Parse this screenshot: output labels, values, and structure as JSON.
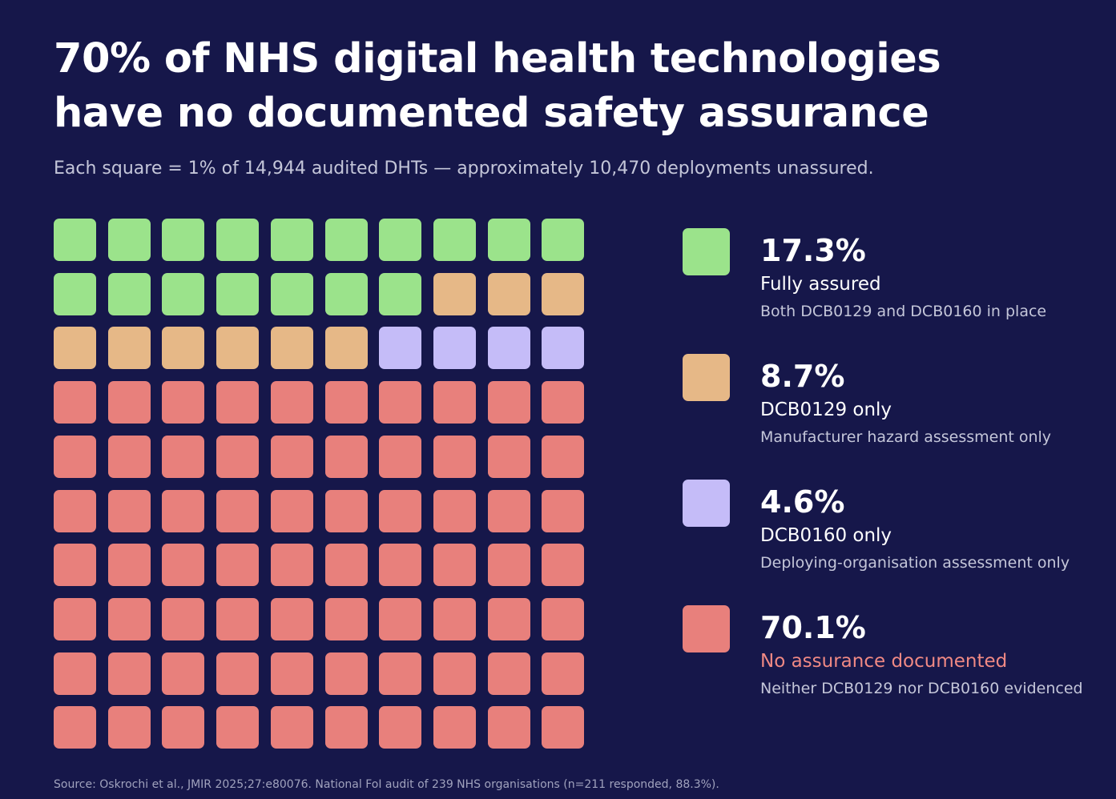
{
  "title": "70% of NHS digital health technologies have no documented safety assurance",
  "subtitle": "Each square = 1% of 14,944 audited DHTs — approximately 10,470 deployments unassured.",
  "source": "Source: Oskrochi et al., JMIR 2025;27:e80076. National FoI audit of 239 NHS organisations (n=211 responded, 88.3%).",
  "chart_data": {
    "type": "waffle",
    "grid_rows": 10,
    "grid_cols": 10,
    "unit": "Each square = 1% of 14,944 audited DHTs",
    "categories": [
      {
        "pct_label": "17.3%",
        "value": 17.3,
        "squares": 17,
        "label": "Fully assured",
        "description": "Both DCB0129 and DCB0160 in place",
        "color": "#9be38b",
        "label_color": "#ffffff"
      },
      {
        "pct_label": "8.7%",
        "value": 8.7,
        "squares": 9,
        "label": "DCB0129 only",
        "description": "Manufacturer hazard assessment only",
        "color": "#e6b887",
        "label_color": "#ffffff"
      },
      {
        "pct_label": "4.6%",
        "value": 4.6,
        "squares": 4,
        "label": "DCB0160 only",
        "description": "Deploying-organisation assessment only",
        "color": "#c5bcf8",
        "label_color": "#ffffff"
      },
      {
        "pct_label": "70.1%",
        "value": 70.1,
        "squares": 70,
        "label": "No assurance documented",
        "description": "Neither DCB0129 nor DCB0160 evidenced",
        "color": "#e8807c",
        "label_color": "#f08984"
      }
    ]
  }
}
